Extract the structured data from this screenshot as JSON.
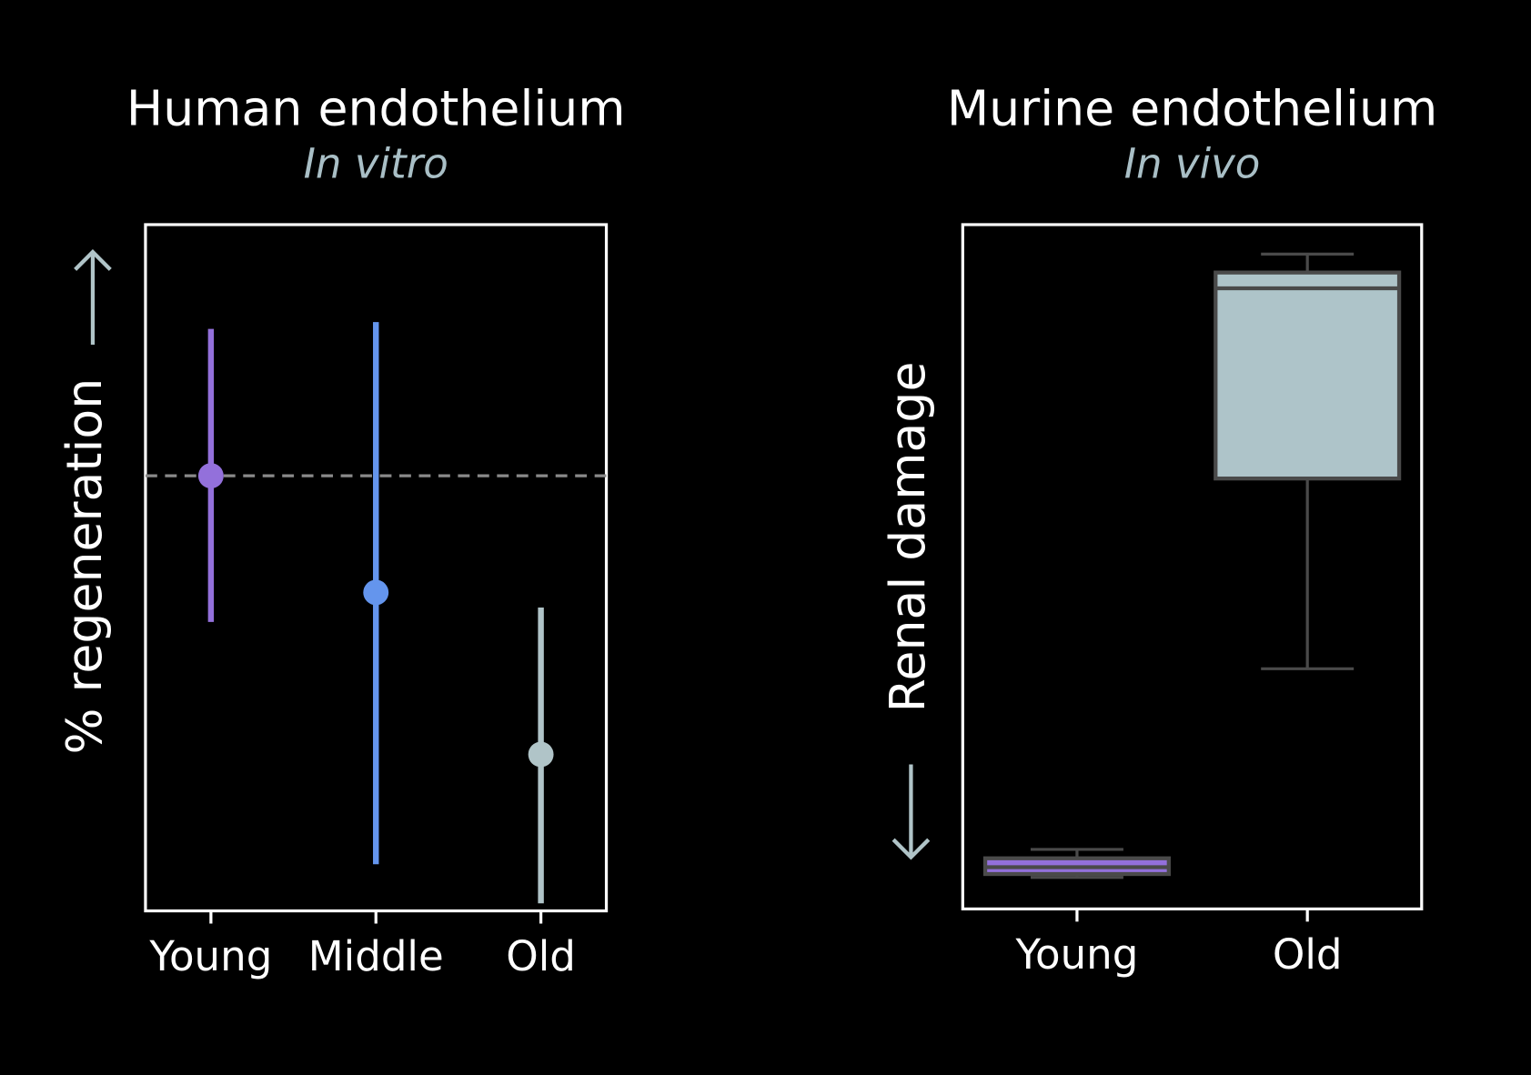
{
  "chart_data": [
    {
      "type": "pointrange",
      "title": "Human endothelium",
      "subtitle": "In vitro",
      "ylabel": "% regeneration",
      "categories": [
        "Young",
        "Middle",
        "Old"
      ],
      "values": [
        63.4,
        46.4,
        22.8
      ],
      "lower": [
        42.1,
        6.8,
        1.1
      ],
      "upper": [
        84.8,
        85.8,
        44.2
      ],
      "colors": [
        "#9370db",
        "#6495ed",
        "#b0c4c8"
      ],
      "reference_line": 63.4,
      "ylim": [
        0,
        100
      ]
    },
    {
      "type": "box",
      "title": "Murine endothelium",
      "subtitle": "In vivo",
      "ylabel": "Renal damage",
      "categories": [
        "Young",
        "Old"
      ],
      "boxes": [
        {
          "min": 4.6,
          "q1": 5.1,
          "median": 6.1,
          "q3": 7.4,
          "max": 8.7
        },
        {
          "min": 35.1,
          "q1": 62.9,
          "median": 90.7,
          "q3": 93.0,
          "max": 95.7
        }
      ],
      "colors": [
        "#9370db",
        "#aec4c9"
      ],
      "ylim": [
        0,
        100
      ]
    }
  ]
}
